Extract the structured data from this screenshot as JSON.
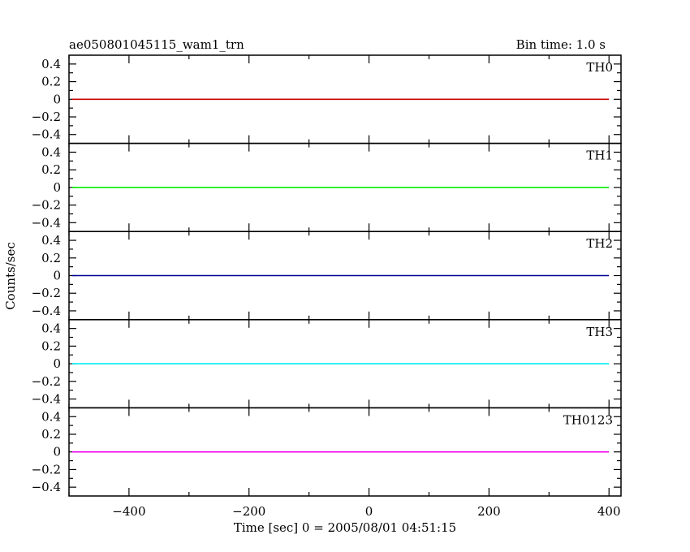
{
  "chart_data": {
    "type": "line",
    "title_left": "ae050801045115_wam1_trn",
    "title_right": "Bin time: 1.0 s",
    "xlabel": "Time [sec] 0 = 2005/08/01 04:51:15",
    "ylabel": "Counts/sec",
    "xlim": [
      -500,
      420
    ],
    "ylim": [
      -0.5,
      0.5
    ],
    "x_ticks": [
      -400,
      -200,
      0,
      200,
      400
    ],
    "x_tick_labels": [
      "−400",
      "−200",
      "0",
      "200",
      "400"
    ],
    "y_ticks": [
      0.4,
      0.2,
      0,
      -0.2,
      -0.4
    ],
    "y_tick_labels": [
      "0.4",
      "0.2",
      "0",
      "−0.2",
      "−0.4"
    ],
    "grid": false,
    "panels": [
      {
        "name": "TH0",
        "color": "#cc0000",
        "x": [
          -500,
          400
        ],
        "y": [
          0,
          0
        ]
      },
      {
        "name": "TH1",
        "color": "#00ee00",
        "x": [
          -500,
          400
        ],
        "y": [
          0,
          0
        ]
      },
      {
        "name": "TH2",
        "color": "#000099",
        "x": [
          -500,
          400
        ],
        "y": [
          0,
          0
        ]
      },
      {
        "name": "TH3",
        "color": "#00eeee",
        "x": [
          -500,
          400
        ],
        "y": [
          0,
          0
        ]
      },
      {
        "name": "TH0123",
        "color": "#ee00ee",
        "x": [
          -500,
          400
        ],
        "y": [
          0,
          0
        ]
      }
    ]
  }
}
